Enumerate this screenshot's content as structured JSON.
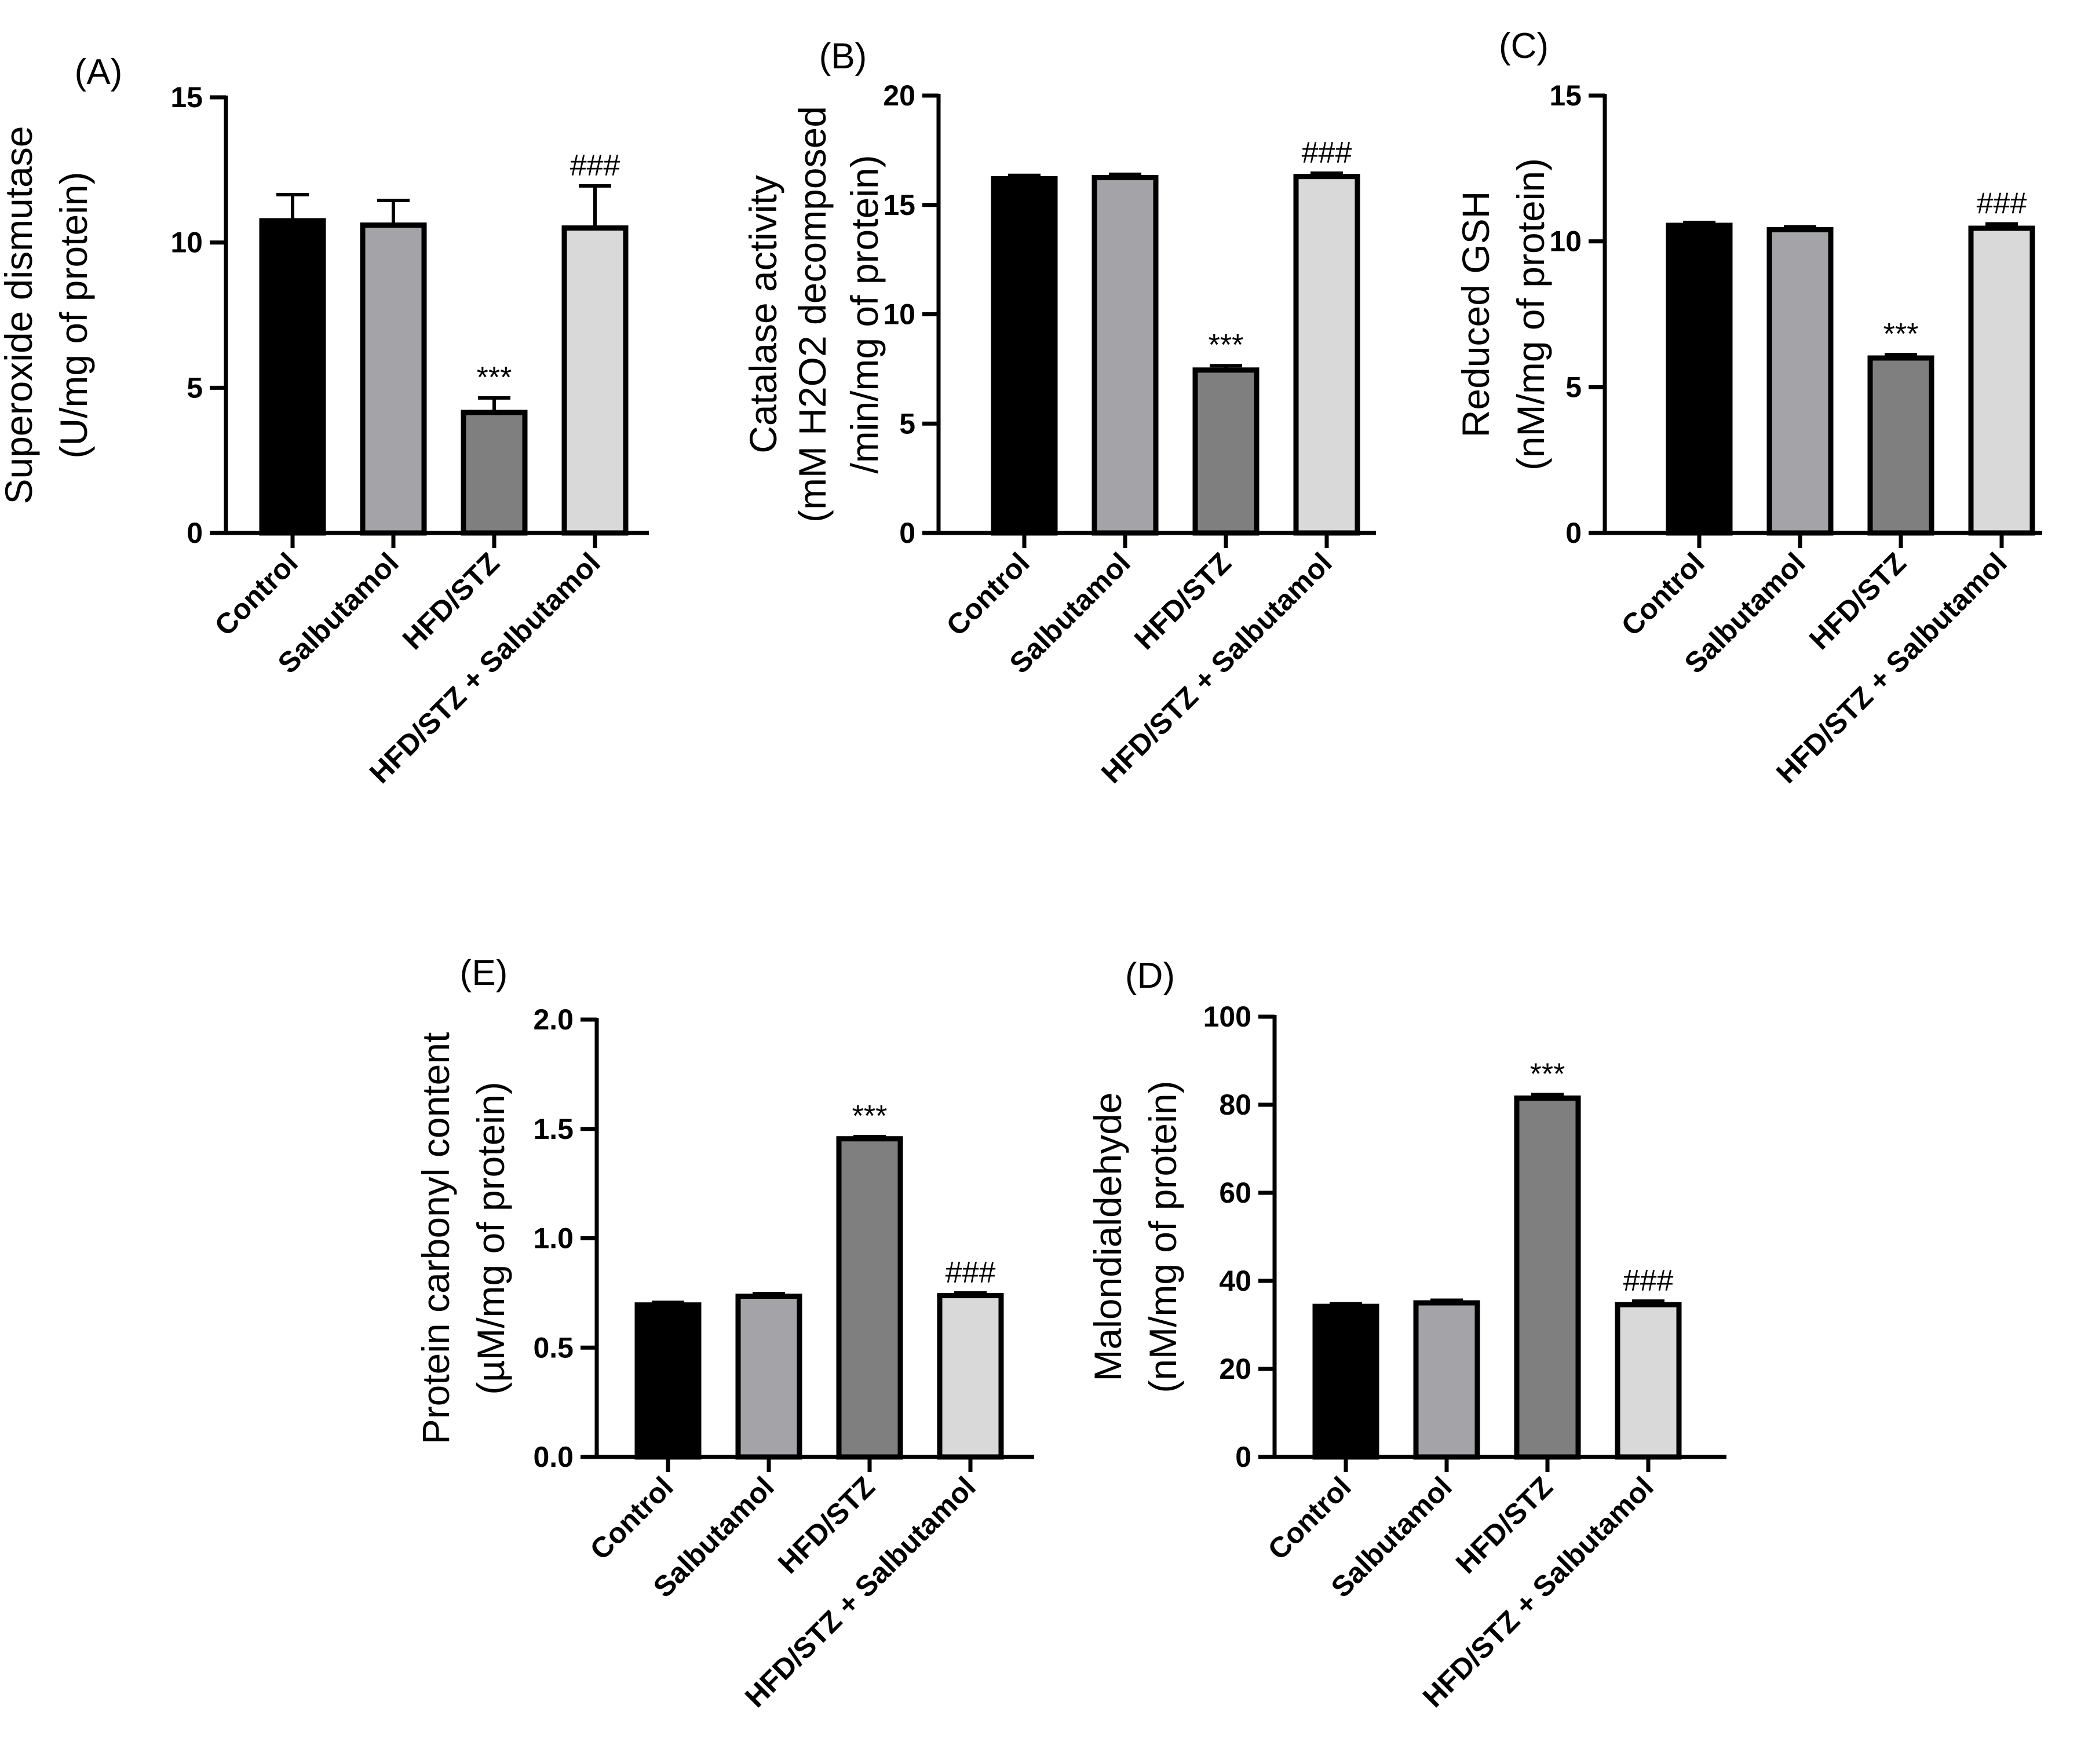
{
  "chart_data": [
    {
      "panel": "(A)",
      "type": "bar",
      "ylabel_line1": "Superoxide dismutase",
      "ylabel_line2": "(U/mg of protein)",
      "ylim": [
        0,
        15
      ],
      "yticks": [
        "0",
        "5",
        "10",
        "15"
      ],
      "categories": [
        "Control",
        "Salbutamol",
        "HFD/STZ",
        "HFD/STZ + Salbutamol"
      ],
      "values": [
        10.75,
        10.6,
        4.15,
        10.5
      ],
      "errors": [
        0.9,
        0.85,
        0.5,
        1.45
      ],
      "annotations": [
        "",
        "",
        "***",
        "###"
      ],
      "colors": [
        "#000000",
        "#a3a3a8",
        "#7f7f7f",
        "#d9d9d9"
      ]
    },
    {
      "panel": "(B)",
      "type": "bar",
      "ylabel_line1": "Catalase activity",
      "ylabel_line2": "(mM H2O2 decomposed",
      "ylabel_line3": "/min/mg of protein)",
      "ylim": [
        0,
        20
      ],
      "yticks": [
        "0",
        "5",
        "10",
        "15",
        "20"
      ],
      "categories": [
        "Control",
        "Salbutamol",
        "HFD/STZ",
        "HFD/STZ + Salbutamol"
      ],
      "values": [
        16.2,
        16.25,
        7.45,
        16.3
      ],
      "errors": [
        0.15,
        0.15,
        0.2,
        0.15
      ],
      "annotations": [
        "",
        "",
        "***",
        "###"
      ],
      "colors": [
        "#000000",
        "#a3a3a8",
        "#7f7f7f",
        "#d9d9d9"
      ]
    },
    {
      "panel": "(C)",
      "type": "bar",
      "ylabel_line1": "Reduced GSH",
      "ylabel_line2": "(nM/mg of protein)",
      "ylim": [
        0,
        15
      ],
      "yticks": [
        "0",
        "5",
        "10",
        "15"
      ],
      "categories": [
        "Control",
        "Salbutamol",
        "HFD/STZ",
        "HFD/STZ + Salbutamol"
      ],
      "values": [
        10.55,
        10.4,
        6.0,
        10.45
      ],
      "errors": [
        0.1,
        0.1,
        0.12,
        0.15
      ],
      "annotations": [
        "",
        "",
        "***",
        "###"
      ],
      "colors": [
        "#000000",
        "#a3a3a8",
        "#7f7f7f",
        "#d9d9d9"
      ]
    },
    {
      "panel": "(E)",
      "type": "bar",
      "ylabel_line1": "Protein carbonyl content",
      "ylabel_line2": "(µM/mg of protein)",
      "ylim": [
        0,
        2.0
      ],
      "yticks": [
        "0.0",
        "0.5",
        "1.0",
        "1.5",
        "2.0"
      ],
      "categories": [
        "Control",
        "Salbutamol",
        "HFD/STZ",
        "HFD/STZ + Salbutamol"
      ],
      "values": [
        0.695,
        0.735,
        1.455,
        0.738
      ],
      "errors": [
        0.012,
        0.012,
        0.01,
        0.012
      ],
      "annotations": [
        "",
        "",
        "***",
        "###"
      ],
      "colors": [
        "#000000",
        "#a3a3a8",
        "#7f7f7f",
        "#d9d9d9"
      ]
    },
    {
      "panel": "(D)",
      "type": "bar",
      "ylabel_line1": "Malondialdehyde",
      "ylabel_line2": "(nM/mg of protein)",
      "ylim": [
        0,
        100
      ],
      "yticks": [
        "0",
        "20",
        "40",
        "60",
        "80",
        "100"
      ],
      "categories": [
        "Control",
        "Salbutamol",
        "HFD/STZ",
        "HFD/STZ + Salbutamol"
      ],
      "values": [
        34.2,
        35.0,
        81.5,
        34.6
      ],
      "errors": [
        0.6,
        0.6,
        0.8,
        0.8
      ],
      "annotations": [
        "",
        "",
        "***",
        "###"
      ],
      "colors": [
        "#000000",
        "#a3a3a8",
        "#7f7f7f",
        "#d9d9d9"
      ]
    }
  ]
}
